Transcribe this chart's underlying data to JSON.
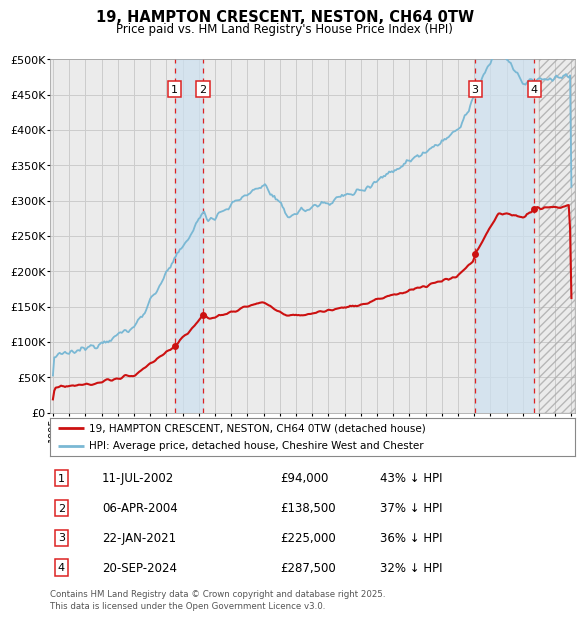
{
  "title": "19, HAMPTON CRESCENT, NESTON, CH64 0TW",
  "subtitle": "Price paid vs. HM Land Registry's House Price Index (HPI)",
  "legend_line1": "19, HAMPTON CRESCENT, NESTON, CH64 0TW (detached house)",
  "legend_line2": "HPI: Average price, detached house, Cheshire West and Chester",
  "footer": "Contains HM Land Registry data © Crown copyright and database right 2025.\nThis data is licensed under the Open Government Licence v3.0.",
  "sale_dates_num": [
    2002.52,
    2004.26,
    2021.06,
    2024.72
  ],
  "sale_prices": [
    94000,
    138500,
    225000,
    287500
  ],
  "sale_labels": [
    "1",
    "2",
    "3",
    "4"
  ],
  "sale_info": [
    [
      "1",
      "11-JUL-2002",
      "£94,000",
      "43% ↓ HPI"
    ],
    [
      "2",
      "06-APR-2004",
      "£138,500",
      "37% ↓ HPI"
    ],
    [
      "3",
      "22-JAN-2021",
      "£225,000",
      "36% ↓ HPI"
    ],
    [
      "4",
      "20-SEP-2024",
      "£287,500",
      "32% ↓ HPI"
    ]
  ],
  "hpi_color": "#7ab8d4",
  "price_color": "#cc1111",
  "vline_color": "#dd2222",
  "shade_color": "#cce0f0",
  "grid_color": "#cccccc",
  "bg_color": "#ebebeb",
  "ylim": [
    0,
    500000
  ],
  "xlim": [
    1994.8,
    2027.2
  ],
  "yticks": [
    0,
    50000,
    100000,
    150000,
    200000,
    250000,
    300000,
    350000,
    400000,
    450000,
    500000
  ],
  "xticks": [
    1995,
    1996,
    1997,
    1998,
    1999,
    2000,
    2001,
    2002,
    2003,
    2004,
    2005,
    2006,
    2007,
    2008,
    2009,
    2010,
    2011,
    2012,
    2013,
    2014,
    2015,
    2016,
    2017,
    2018,
    2019,
    2020,
    2021,
    2022,
    2023,
    2024,
    2025,
    2026,
    2027
  ],
  "hatch_start": 2025.0
}
